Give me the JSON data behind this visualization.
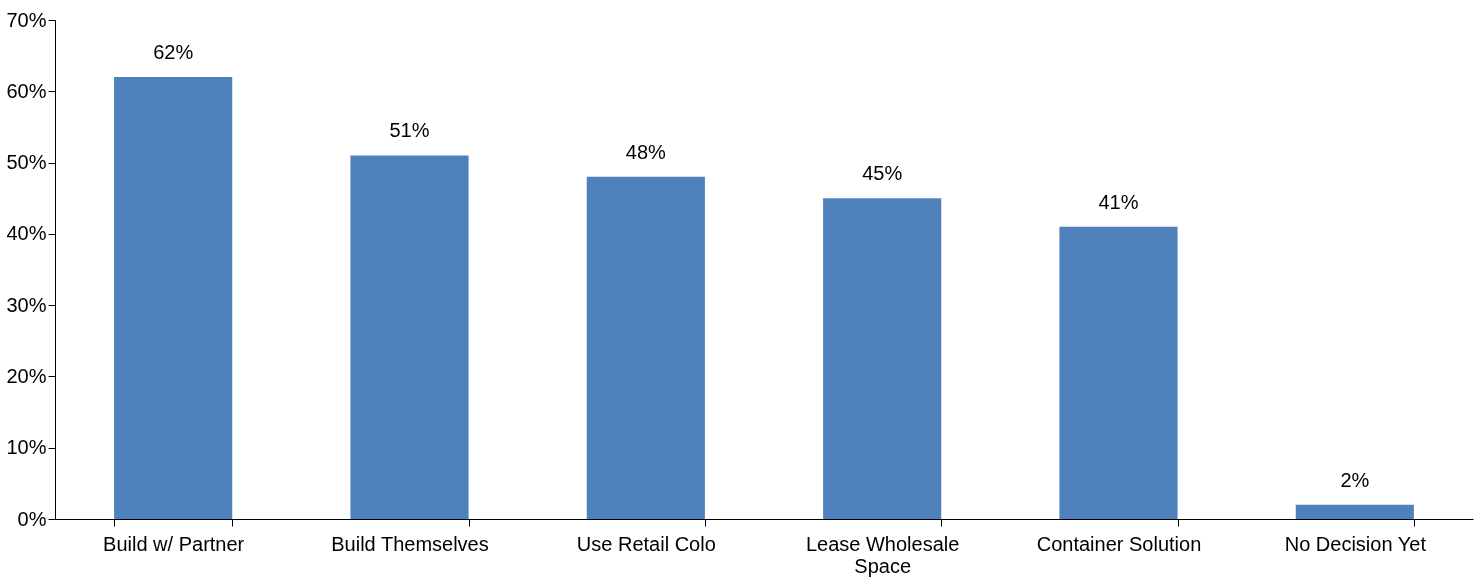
{
  "chart_data": {
    "type": "bar",
    "categories": [
      "Build w/ Partner",
      "Build Themselves",
      "Use Retail Colo",
      "Lease Wholesale Space",
      "Container Solution",
      "No Decision Yet"
    ],
    "values": [
      62,
      51,
      48,
      45,
      41,
      2
    ],
    "color": "#4f81bd",
    "value_labels": [
      "62%",
      "51%",
      "48%",
      "45%",
      "41%",
      "2%"
    ],
    "ylim": [
      0,
      70
    ],
    "yticks": [
      {
        "value": 0,
        "label": "0%"
      },
      {
        "value": 10,
        "label": "10%"
      },
      {
        "value": 20,
        "label": "20%"
      },
      {
        "value": 30,
        "label": "30%"
      },
      {
        "value": 40,
        "label": "40%"
      },
      {
        "value": 50,
        "label": "50%"
      },
      {
        "value": 60,
        "label": "60%"
      },
      {
        "value": 70,
        "label": "70%"
      }
    ],
    "grid": false
  }
}
